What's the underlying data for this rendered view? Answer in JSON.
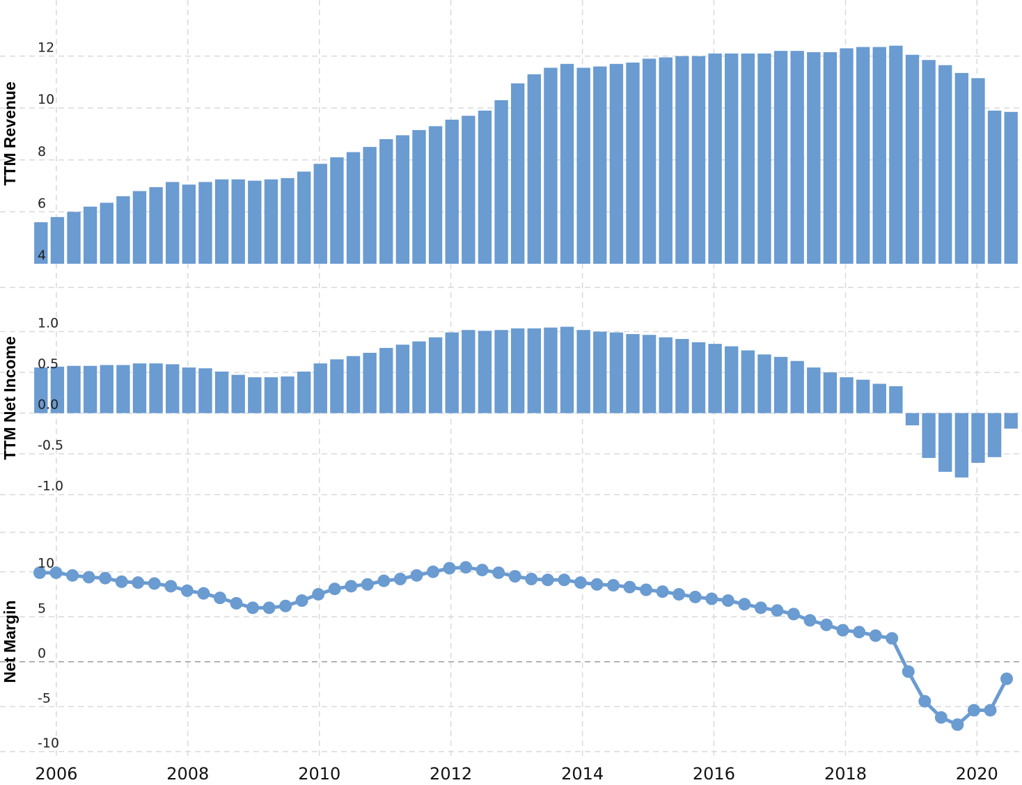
{
  "chart_data": [
    {
      "type": "bar",
      "ylabel": "TTM Revenue",
      "ylim": [
        4,
        14
      ],
      "yticks": [
        4,
        6,
        8,
        10,
        12
      ],
      "grid": true,
      "color": "#6a9bd1",
      "x": [
        "2005-09-30",
        "2005-12-31",
        "2006-03-31",
        "2006-06-30",
        "2006-09-30",
        "2006-12-31",
        "2007-03-31",
        "2007-06-30",
        "2007-09-30",
        "2007-12-31",
        "2008-03-31",
        "2008-06-30",
        "2008-09-30",
        "2008-12-31",
        "2009-03-31",
        "2009-06-30",
        "2009-09-30",
        "2009-12-31",
        "2010-03-31",
        "2010-06-30",
        "2010-09-30",
        "2010-12-31",
        "2011-03-31",
        "2011-06-30",
        "2011-09-30",
        "2011-12-31",
        "2012-03-31",
        "2012-06-30",
        "2012-09-30",
        "2012-12-31",
        "2013-03-31",
        "2013-06-30",
        "2013-09-30",
        "2013-12-31",
        "2014-03-31",
        "2014-06-30",
        "2014-09-30",
        "2014-12-31",
        "2015-03-31",
        "2015-06-30",
        "2015-09-30",
        "2015-12-31",
        "2016-03-31",
        "2016-06-30",
        "2016-09-30",
        "2016-12-31",
        "2017-03-31",
        "2017-06-30",
        "2017-09-30",
        "2017-12-31",
        "2018-03-31",
        "2018-06-30",
        "2018-09-30",
        "2018-12-31",
        "2019-03-31",
        "2019-06-30",
        "2019-09-30",
        "2019-12-31",
        "2020-03-31",
        "2020-06-30"
      ],
      "values": [
        5.6,
        5.8,
        6.0,
        6.2,
        6.35,
        6.6,
        6.8,
        6.95,
        7.15,
        7.05,
        7.15,
        7.25,
        7.25,
        7.2,
        7.25,
        7.3,
        7.55,
        7.85,
        8.1,
        8.3,
        8.5,
        8.8,
        8.95,
        9.15,
        9.3,
        9.55,
        9.7,
        9.9,
        10.3,
        10.95,
        11.3,
        11.55,
        11.7,
        11.55,
        11.6,
        11.7,
        11.75,
        11.9,
        11.95,
        12.0,
        12.0,
        12.1,
        12.1,
        12.1,
        12.1,
        12.2,
        12.2,
        12.15,
        12.15,
        12.3,
        12.35,
        12.35,
        12.4,
        12.05,
        11.85,
        11.65,
        11.35,
        11.15,
        9.9,
        9.85
      ]
    },
    {
      "type": "bar",
      "ylabel": "TTM Net Income",
      "ylim": [
        -1.25,
        1.5
      ],
      "yticks": [
        -1.0,
        -0.5,
        0.0,
        0.5,
        1.0
      ],
      "ytick_labels": [
        "-1.0",
        "-0.5",
        "0.0",
        "0.5",
        "1.0"
      ],
      "grid": true,
      "color": "#6a9bd1",
      "x": [
        "2005-09-30",
        "2005-12-31",
        "2006-03-31",
        "2006-06-30",
        "2006-09-30",
        "2006-12-31",
        "2007-03-31",
        "2007-06-30",
        "2007-09-30",
        "2007-12-31",
        "2008-03-31",
        "2008-06-30",
        "2008-09-30",
        "2008-12-31",
        "2009-03-31",
        "2009-06-30",
        "2009-09-30",
        "2009-12-31",
        "2010-03-31",
        "2010-06-30",
        "2010-09-30",
        "2010-12-31",
        "2011-03-31",
        "2011-06-30",
        "2011-09-30",
        "2011-12-31",
        "2012-03-31",
        "2012-06-30",
        "2012-09-30",
        "2012-12-31",
        "2013-03-31",
        "2013-06-30",
        "2013-09-30",
        "2013-12-31",
        "2014-03-31",
        "2014-06-30",
        "2014-09-30",
        "2014-12-31",
        "2015-03-31",
        "2015-06-30",
        "2015-09-30",
        "2015-12-31",
        "2016-03-31",
        "2016-06-30",
        "2016-09-30",
        "2016-12-31",
        "2017-03-31",
        "2017-06-30",
        "2017-09-30",
        "2017-12-31",
        "2018-03-31",
        "2018-06-30",
        "2018-09-30",
        "2018-12-31",
        "2019-03-31",
        "2019-06-30",
        "2019-09-30",
        "2019-12-31",
        "2020-03-31",
        "2020-06-30"
      ],
      "values": [
        0.56,
        0.57,
        0.58,
        0.58,
        0.59,
        0.59,
        0.61,
        0.61,
        0.6,
        0.56,
        0.55,
        0.51,
        0.47,
        0.44,
        0.44,
        0.45,
        0.51,
        0.61,
        0.66,
        0.7,
        0.74,
        0.8,
        0.84,
        0.88,
        0.93,
        0.99,
        1.02,
        1.01,
        1.02,
        1.04,
        1.04,
        1.05,
        1.06,
        1.02,
        1.0,
        0.99,
        0.97,
        0.96,
        0.93,
        0.91,
        0.87,
        0.85,
        0.82,
        0.77,
        0.72,
        0.69,
        0.64,
        0.56,
        0.5,
        0.44,
        0.41,
        0.36,
        0.33,
        -0.15,
        -0.55,
        -0.72,
        -0.79,
        -0.61,
        -0.54,
        -0.19
      ]
    },
    {
      "type": "line",
      "ylabel": "Net Margin",
      "ylim": [
        -10,
        14
      ],
      "yticks": [
        -10,
        -5,
        0,
        5,
        10
      ],
      "grid": true,
      "markers": true,
      "color": "#6a9bd1",
      "x": [
        "2005-09-30",
        "2005-12-31",
        "2006-03-31",
        "2006-06-30",
        "2006-09-30",
        "2006-12-31",
        "2007-03-31",
        "2007-06-30",
        "2007-09-30",
        "2007-12-31",
        "2008-03-31",
        "2008-06-30",
        "2008-09-30",
        "2008-12-31",
        "2009-03-31",
        "2009-06-30",
        "2009-09-30",
        "2009-12-31",
        "2010-03-31",
        "2010-06-30",
        "2010-09-30",
        "2010-12-31",
        "2011-03-31",
        "2011-06-30",
        "2011-09-30",
        "2011-12-31",
        "2012-03-31",
        "2012-06-30",
        "2012-09-30",
        "2012-12-31",
        "2013-03-31",
        "2013-06-30",
        "2013-09-30",
        "2013-12-31",
        "2014-03-31",
        "2014-06-30",
        "2014-09-30",
        "2014-12-31",
        "2015-03-31",
        "2015-06-30",
        "2015-09-30",
        "2015-12-31",
        "2016-03-31",
        "2016-06-30",
        "2016-09-30",
        "2016-12-31",
        "2017-03-31",
        "2017-06-30",
        "2017-09-30",
        "2017-12-31",
        "2018-03-31",
        "2018-06-30",
        "2018-09-30",
        "2018-12-31",
        "2019-03-31",
        "2019-06-30",
        "2019-09-30",
        "2019-12-31",
        "2020-03-31",
        "2020-06-30"
      ],
      "values": [
        9.9,
        9.9,
        9.6,
        9.4,
        9.3,
        8.9,
        8.8,
        8.7,
        8.4,
        7.9,
        7.6,
        7.1,
        6.5,
        6.0,
        6.0,
        6.2,
        6.8,
        7.5,
        8.1,
        8.4,
        8.6,
        9.0,
        9.2,
        9.6,
        10.0,
        10.4,
        10.5,
        10.2,
        9.9,
        9.5,
        9.2,
        9.1,
        9.1,
        8.8,
        8.6,
        8.5,
        8.3,
        8.0,
        7.8,
        7.5,
        7.2,
        7.0,
        6.8,
        6.4,
        6.0,
        5.7,
        5.3,
        4.6,
        4.1,
        3.5,
        3.3,
        2.9,
        2.6,
        -1.1,
        -4.4,
        -6.2,
        -7.0,
        -5.4,
        -5.4,
        -1.9
      ]
    }
  ],
  "x_axis": {
    "tick_labels": [
      "2006",
      "2008",
      "2010",
      "2012",
      "2014",
      "2016",
      "2018",
      "2020"
    ],
    "tick_dates": [
      "2006-01-01",
      "2008-01-01",
      "2010-01-01",
      "2012-01-01",
      "2014-01-01",
      "2016-01-01",
      "2018-01-01",
      "2020-01-01"
    ],
    "range": [
      "2005-08-15",
      "2020-08-15"
    ]
  }
}
